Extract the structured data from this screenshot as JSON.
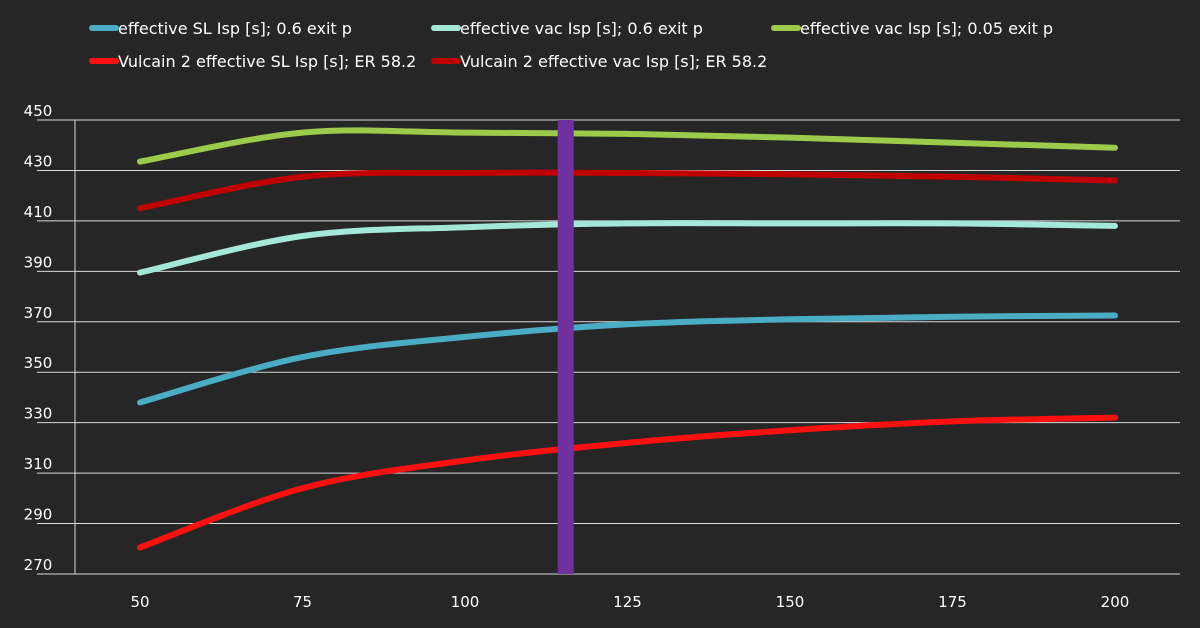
{
  "chart_data": {
    "type": "line",
    "title": "",
    "xlabel": "",
    "ylabel": "",
    "x": [
      50,
      75,
      100,
      125,
      150,
      175,
      200
    ],
    "xlim": [
      40,
      210
    ],
    "ylim": [
      270,
      450
    ],
    "x_ticks": [
      50,
      75,
      100,
      125,
      150,
      175,
      200
    ],
    "y_ticks": [
      270,
      290,
      310,
      330,
      350,
      370,
      390,
      410,
      430,
      450
    ],
    "grid": true,
    "legend_position": "top",
    "marker_x": 115.5,
    "marker_color": "#7030A0",
    "series": [
      {
        "name": "effective SL Isp [s]; 0.6 exit p",
        "color": "#4BACC6",
        "values": [
          338,
          356,
          364,
          369,
          371,
          372,
          372.5
        ]
      },
      {
        "name": "effective vac Isp [s]; 0.6 exit p",
        "color": "#A4E8D8",
        "values": [
          389.5,
          404,
          407.5,
          409,
          409,
          409,
          408
        ]
      },
      {
        "name": "effective vac Isp [s]; 0.05 exit p",
        "color": "#9BCB4B",
        "values": [
          433.5,
          445,
          445,
          444.5,
          443,
          441,
          439
        ]
      },
      {
        "name": "Vulcain 2 effective SL Isp [s]; ER 58.2",
        "color": "#FF1010",
        "values": [
          280.5,
          304,
          315,
          322,
          327,
          330.5,
          332
        ]
      },
      {
        "name": "Vulcain 2 effective vac Isp [s]; ER 58.2",
        "color": "#C00000",
        "values": [
          415,
          427.5,
          429,
          429,
          428.5,
          427.5,
          426
        ]
      }
    ]
  }
}
